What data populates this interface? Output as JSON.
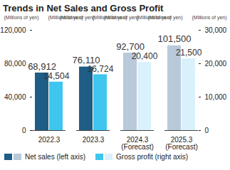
{
  "chart_data": {
    "type": "bar",
    "title": "Trends in Net Sales and Gross Profit",
    "categories": [
      "2022.3",
      "2023.3",
      "2024.3\n(Forecast)",
      "2025.3\n(Forecast)"
    ],
    "ylabel": "(Millions of yen)",
    "y2label": "(Millions of yen)",
    "series": [
      {
        "name": "Net sales (left axis)",
        "colors": [
          "#1e5d85",
          "#1e5d85",
          "#b8c9da",
          "#b8c9da"
        ],
        "values": [
          68912,
          76110,
          92700,
          101500
        ],
        "value_labels": [
          "68,912",
          "76,110",
          "92,700",
          "101,500"
        ]
      },
      {
        "name": "Gross profit (right axis)",
        "axis": "y2",
        "colors": [
          "#3ec6ef",
          "#3ec6ef",
          "#d9f1fb",
          "#d9f1fb"
        ],
        "values": [
          14504,
          16724,
          20400,
          21500
        ],
        "value_labels": [
          "14,504",
          "16,724",
          "20,400",
          "21,500"
        ]
      }
    ],
    "ylim": [
      0,
      120000
    ],
    "yticks": [
      0,
      {
        "value": 40000,
        "label": "40,000"
      },
      {
        "value": 80000,
        "label": "80,000"
      },
      {
        "value": 120000,
        "label": "120,000"
      }
    ],
    "y2lim": [
      0,
      30000
    ],
    "y2ticks": [
      0,
      {
        "value": 10000,
        "label": "10,000"
      },
      {
        "value": 20000,
        "label": "20,000"
      },
      {
        "value": 30000,
        "label": "30,000"
      }
    ],
    "data_labels": true,
    "legend": "bottom"
  }
}
